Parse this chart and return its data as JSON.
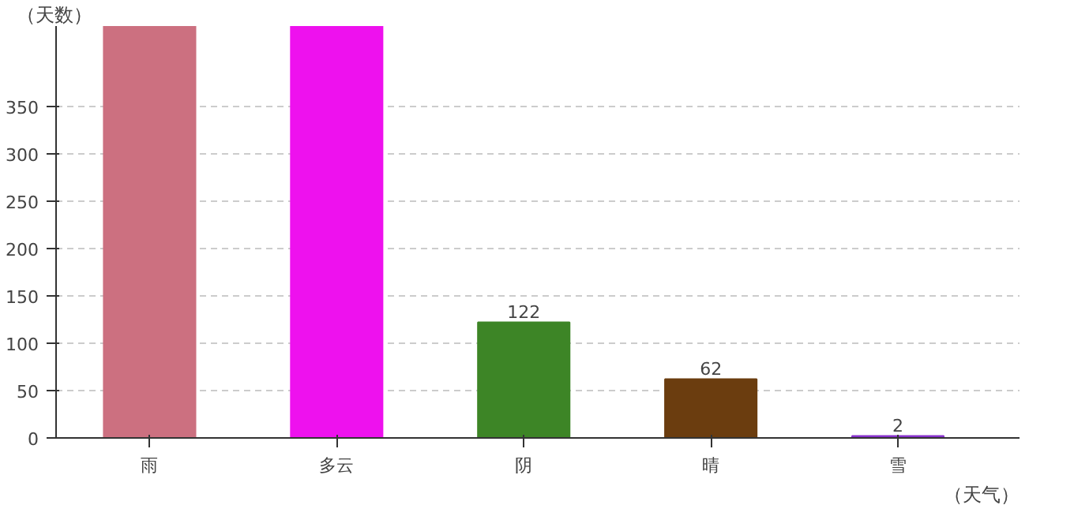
{
  "chart_data": {
    "type": "bar",
    "categories": [
      "雨",
      "多云",
      "阴",
      "晴",
      "雪"
    ],
    "values": [
      435,
      435,
      122,
      62,
      2
    ],
    "colors": [
      "#cc7080",
      "#ee11ee",
      "#3d8526",
      "#6b3d0f",
      "#8833cc"
    ],
    "value_labels": [
      null,
      null,
      "122",
      "62",
      "2"
    ],
    "xlabel": "（天气）",
    "ylabel": "（天数）",
    "ylim": [
      0,
      435
    ],
    "yticks": [
      0,
      50,
      100,
      150,
      200,
      250,
      300,
      350
    ],
    "grid": "y"
  }
}
